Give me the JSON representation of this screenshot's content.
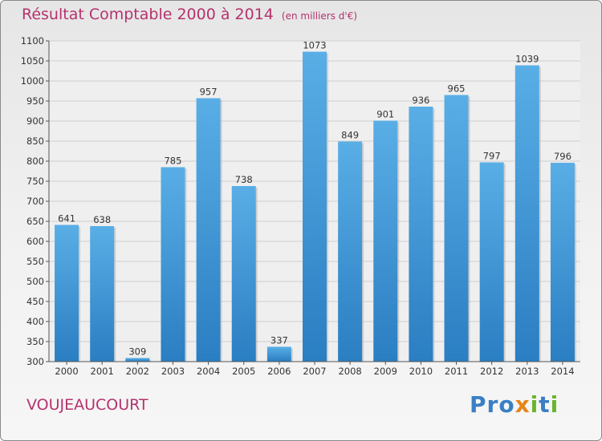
{
  "chart_data": {
    "type": "bar",
    "title": "Résultat Comptable 2000 à 2014",
    "subtitle": "(en milliers d'€)",
    "categories": [
      "2000",
      "2001",
      "2002",
      "2003",
      "2004",
      "2005",
      "2006",
      "2007",
      "2008",
      "2009",
      "2010",
      "2011",
      "2012",
      "2013",
      "2014"
    ],
    "values": [
      641,
      638,
      309,
      785,
      957,
      738,
      337,
      1073,
      849,
      901,
      936,
      965,
      797,
      1039,
      796
    ],
    "ylim": [
      300,
      1100
    ],
    "yticks": [
      300,
      350,
      400,
      450,
      500,
      550,
      600,
      650,
      700,
      750,
      800,
      850,
      900,
      950,
      1000,
      1050,
      1100
    ],
    "grid": true,
    "xlabel": "",
    "ylabel": "",
    "colors": {
      "bar_top": "#5aaee6",
      "bar_bottom": "#2a7ec2",
      "accent": "#b5326e"
    }
  },
  "footer": {
    "commune": "VOUJEAUCOURT"
  },
  "logo": {
    "letters": [
      "P",
      "r",
      "o",
      "x",
      "i",
      "t",
      "i"
    ],
    "colors": [
      "#3a7fc4",
      "#3a7fc4",
      "#3a7fc4",
      "#e8841a",
      "#6ab42d",
      "#3a7fc4",
      "#6ab42d"
    ]
  }
}
